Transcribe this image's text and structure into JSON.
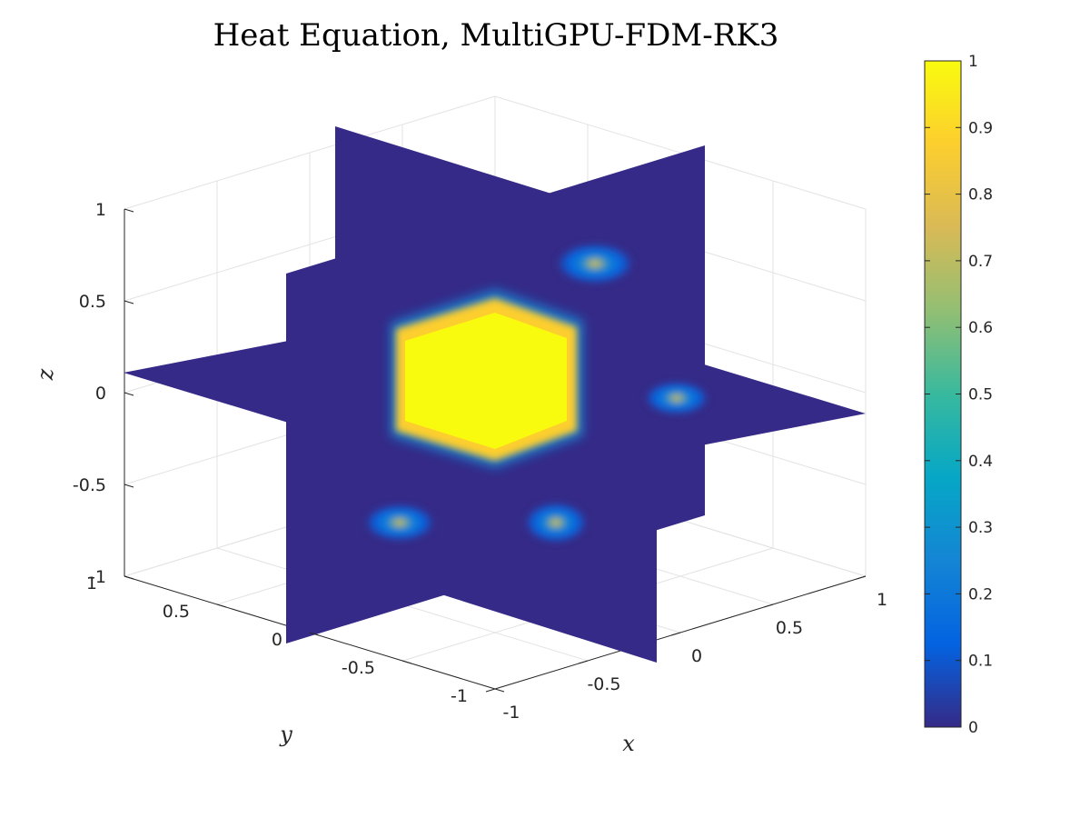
{
  "chart_data": {
    "type": "heatmap",
    "subtype": "3d-slice",
    "title": "Heat Equation, MultiGPU-FDM-RK3",
    "xlabel": "x",
    "ylabel": "y",
    "zlabel": "z",
    "xlim": [
      -1,
      1
    ],
    "ylim": [
      -1,
      1
    ],
    "zlim": [
      -1,
      1
    ],
    "x_ticks": [
      "-1",
      "-0.5",
      "0",
      "0.5",
      "1"
    ],
    "y_ticks": [
      "-1",
      "-0.5",
      "0",
      "0.5",
      "1"
    ],
    "z_ticks": [
      "-1",
      "-0.5",
      "0",
      "0.5",
      "1"
    ],
    "grid": true,
    "slices": [
      {
        "plane": "x",
        "value": 0
      },
      {
        "plane": "y",
        "value": 0
      },
      {
        "plane": "z",
        "value": 0
      }
    ],
    "field": {
      "hot_region": "centered cube",
      "hot_value": 1,
      "background_value": 0
    },
    "colorbar": {
      "limits": [
        0,
        1
      ],
      "ticks": [
        "0",
        "0.1",
        "0.2",
        "0.3",
        "0.4",
        "0.5",
        "0.6",
        "0.7",
        "0.8",
        "0.9",
        "1"
      ],
      "colormap": "parula",
      "colors": [
        "#352a87",
        "#0363e1",
        "#1485d4",
        "#06a7c6",
        "#38b99e",
        "#92bf73",
        "#d9ba56",
        "#fcce2e",
        "#f9fb0e"
      ]
    }
  }
}
